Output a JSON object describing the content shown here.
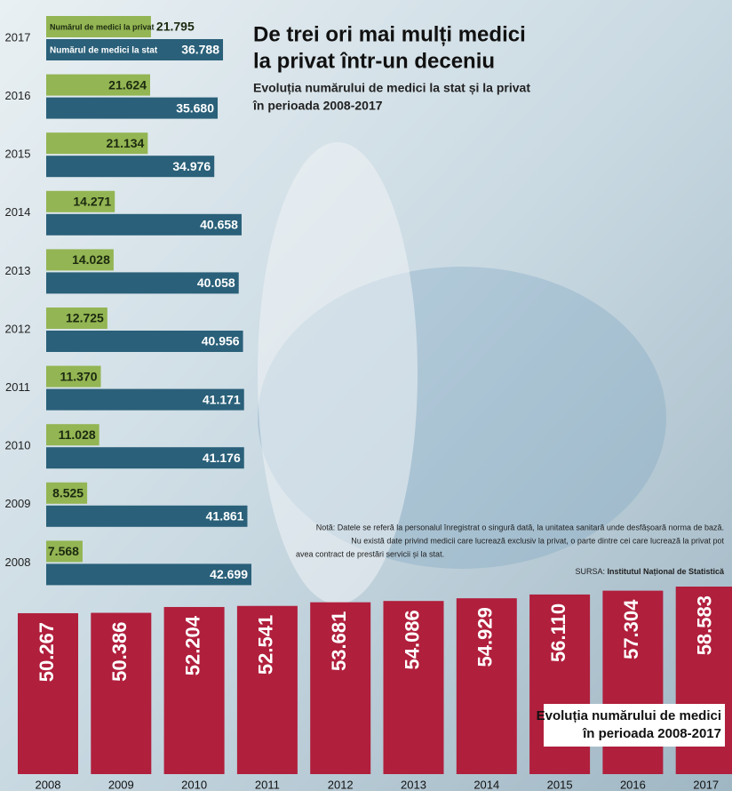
{
  "chart_data": [
    {
      "type": "bar",
      "orientation": "horizontal",
      "title": [
        "De trei ori mai mulți medici",
        "la privat într-un deceniu"
      ],
      "subtitle": [
        "Evoluția numărului de medici la stat și la privat",
        "în perioada 2008-2017"
      ],
      "categories": [
        "2008",
        "2009",
        "2010",
        "2011",
        "2012",
        "2013",
        "2014",
        "2015",
        "2016",
        "2017"
      ],
      "series": [
        {
          "name": "Numărul de medici la privat",
          "color": "#93b553",
          "values": [
            7568,
            8525,
            11028,
            11370,
            12725,
            14028,
            14271,
            21134,
            21624,
            21795
          ],
          "value_labels": [
            "7.568",
            "8.525",
            "11.028",
            "11.370",
            "12.725",
            "14.028",
            "14.271",
            "21.134",
            "21.624",
            "21.795"
          ]
        },
        {
          "name": "Numărul de medici la stat",
          "color": "#2a6079",
          "values": [
            42699,
            41861,
            41176,
            41171,
            40956,
            40058,
            40658,
            34976,
            35680,
            36788
          ],
          "value_labels": [
            "42.699",
            "41.861",
            "41.176",
            "41.171",
            "40.956",
            "40.058",
            "40.658",
            "34.976",
            "35.680",
            "36.788"
          ]
        }
      ],
      "note": [
        "Notă: Datele se referă la personalul înregistrat o singură dată, la unitatea sanitară unde desfășoară norma de bază.",
        "Nu există date privind medicii care lucrează exclusiv la privat, o parte dintre cei care lucrează la privat pot",
        "avea contract de prestări servicii și la stat."
      ],
      "source_label": "SURSA:",
      "source": "Institutul Național de Statistică"
    },
    {
      "type": "bar",
      "title": [
        "Evoluția numărului de medici",
        "în perioada 2008-2017"
      ],
      "categories": [
        "2008",
        "2009",
        "2010",
        "2011",
        "2012",
        "2013",
        "2014",
        "2015",
        "2016",
        "2017"
      ],
      "values": [
        50267,
        50386,
        52204,
        52541,
        53681,
        54086,
        54929,
        56110,
        57304,
        58583
      ],
      "value_labels": [
        "50.267",
        "50.386",
        "52.204",
        "52.541",
        "53.681",
        "54.086",
        "54.929",
        "56.110",
        "57.304",
        "58.583"
      ],
      "color": "#b01f3c"
    }
  ]
}
